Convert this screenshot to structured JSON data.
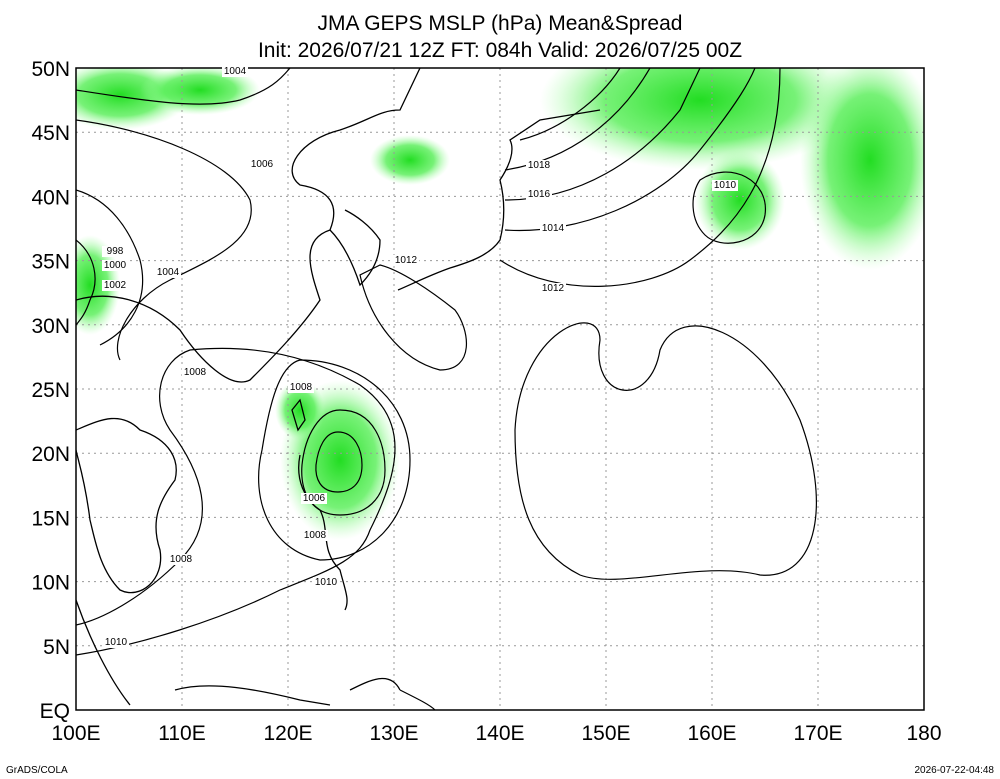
{
  "title": [
    "JMA GEPS MSLP (hPa) Mean&Spread",
    "Init: 2026/07/21 12Z  FT: 084h  Valid: 2026/07/25 00Z"
  ],
  "lat_labels": [
    "50N",
    "45N",
    "40N",
    "35N",
    "30N",
    "25N",
    "20N",
    "15N",
    "10N",
    "5N",
    "EQ"
  ],
  "lon_labels": [
    "100E",
    "110E",
    "120E",
    "130E",
    "140E",
    "150E",
    "160E",
    "170E",
    "180"
  ],
  "contour_labels": [
    "1004",
    "1006",
    "998",
    "1000",
    "1002",
    "1004",
    "1008",
    "1008",
    "1006",
    "1008",
    "1008",
    "1010",
    "1010",
    "1012",
    "1018",
    "1016",
    "1014",
    "1012",
    "1010"
  ],
  "footer": {
    "left": "GrADS/COLA",
    "right": "2026-07-22-04:48"
  }
}
